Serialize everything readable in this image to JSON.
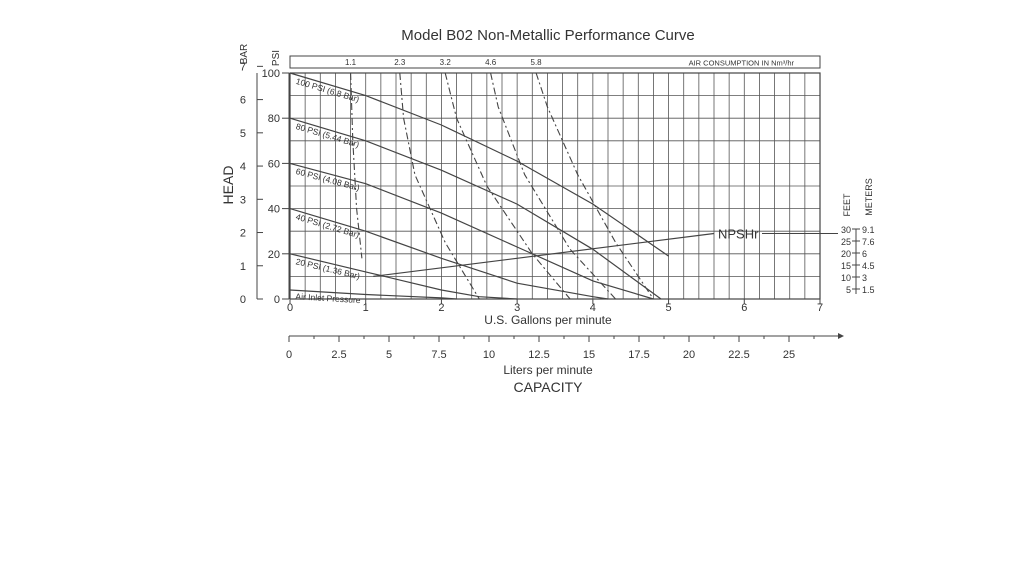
{
  "chart_data": {
    "type": "line",
    "title": "Model B02 Non-Metallic Performance Curve",
    "xlabel": "U.S. Gallons per minute",
    "x2label": "Liters per minute",
    "capacity_label": "CAPACITY",
    "ylabel": "HEAD",
    "psi_label": "PSI",
    "bar_label": "BAR",
    "feet_label": "FEET",
    "meters_label": "METERS",
    "xlim": [
      0,
      7
    ],
    "ylim": [
      0,
      100
    ],
    "grid": true,
    "x_ticks": [
      "0",
      "1",
      "2",
      "3",
      "4",
      "5",
      "6",
      "7"
    ],
    "psi_ticks": [
      "0",
      "20",
      "40",
      "60",
      "80",
      "100"
    ],
    "bar_ticks": [
      "0",
      "1",
      "2",
      "3",
      "4",
      "5",
      "6",
      "7"
    ],
    "lpm_ticks": [
      "0",
      "2.5",
      "5",
      "7.5",
      "10",
      "12.5",
      "15",
      "17.5",
      "20",
      "22.5",
      "25"
    ],
    "feet_ticks": [
      "30",
      "25",
      "20",
      "15",
      "10",
      "5"
    ],
    "meters_ticks": [
      "9.1",
      "7.6",
      "6",
      "4.5",
      "3",
      "1.5"
    ],
    "air_consumption": {
      "label": "AIR CONSUMPTION IN Nm³/hr",
      "ticks": [
        "1.1",
        "2.3",
        "3.2",
        "4.6",
        "5.8"
      ],
      "x": [
        0.8,
        1.45,
        2.05,
        2.65,
        3.25
      ]
    },
    "series": [
      {
        "name": "100 PSI (6.8 Bar)",
        "x": [
          0,
          1,
          2,
          3,
          4,
          5
        ],
        "y": [
          100,
          90,
          77,
          61,
          42,
          19
        ]
      },
      {
        "name": "80 PSI (5.44 Bar)",
        "x": [
          0,
          1,
          2,
          3,
          4,
          4.9
        ],
        "y": [
          80,
          70,
          57,
          42,
          22,
          0
        ]
      },
      {
        "name": "60 PSI (4.08 Bar)",
        "x": [
          0,
          1,
          2,
          3,
          4,
          4.8
        ],
        "y": [
          60,
          51,
          38,
          23,
          8,
          0
        ]
      },
      {
        "name": "40 PSI (2.72 Bar)",
        "x": [
          0,
          1,
          2,
          3,
          4,
          4.2
        ],
        "y": [
          40,
          30,
          18,
          7,
          1,
          0
        ]
      },
      {
        "name": "20 PSI (1.36 Bar)",
        "x": [
          0,
          1,
          2,
          2.5,
          3
        ],
        "y": [
          20,
          12,
          4,
          1,
          0
        ]
      },
      {
        "name": "Air Inlet Pressure",
        "x": [
          0,
          1,
          2,
          2.2
        ],
        "y": [
          4,
          2,
          0.5,
          0
        ]
      }
    ],
    "air_curves": [
      {
        "label": "1.1",
        "x": [
          0.8,
          0.83,
          0.88,
          0.95
        ],
        "y": [
          100,
          70,
          40,
          18
        ]
      },
      {
        "label": "2.3",
        "x": [
          1.45,
          1.5,
          1.65,
          2.05,
          2.5
        ],
        "y": [
          100,
          80,
          55,
          25,
          0
        ]
      },
      {
        "label": "3.2",
        "x": [
          2.05,
          2.2,
          2.6,
          3.2,
          3.7
        ],
        "y": [
          100,
          80,
          50,
          20,
          0
        ]
      },
      {
        "label": "4.6",
        "x": [
          2.65,
          2.75,
          3.1,
          3.7,
          4.3
        ],
        "y": [
          100,
          85,
          55,
          22,
          0
        ]
      },
      {
        "label": "5.8",
        "x": [
          3.25,
          3.4,
          3.8,
          4.3,
          4.8
        ],
        "y": [
          100,
          85,
          55,
          25,
          0
        ]
      }
    ],
    "npshr": {
      "label": "NPSHr",
      "x": [
        1.1,
        5.6
      ],
      "y": [
        10,
        29
      ]
    }
  }
}
